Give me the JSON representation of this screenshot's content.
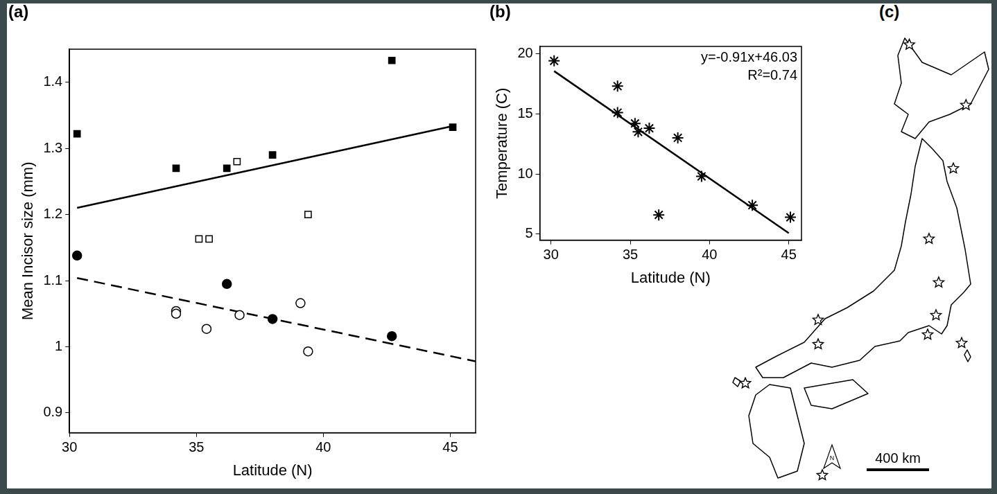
{
  "chart_data": [
    {
      "type": "scatter",
      "title": "(a)",
      "x_label": "Latitude (N)",
      "y_label": "Mean Incisor size (mm)",
      "xlim": [
        30,
        46
      ],
      "xticks": [
        30,
        35,
        40,
        45
      ],
      "ylim": [
        0.87,
        1.45
      ],
      "yticks": [
        0.9,
        1,
        1.1,
        1.2,
        1.3,
        1.4
      ],
      "grid": false,
      "series": [
        {
          "type": "line",
          "line_style": "solid",
          "color": "#000000",
          "x": [
            30.3,
            45
          ],
          "values": [
            1.21,
            1.333
          ]
        },
        {
          "type": "line",
          "line_style": "dashed",
          "color": "#000000",
          "x": [
            30.3,
            46
          ],
          "values": [
            1.104,
            0.978
          ]
        },
        {
          "type": "scatter",
          "marker": "square",
          "color": "#000000",
          "x": [
            30.3,
            34.2,
            36.2,
            38,
            42.7,
            45.1
          ],
          "values": [
            1.322,
            1.27,
            1.27,
            1.29,
            1.433,
            1.332
          ]
        },
        {
          "type": "scatter",
          "marker": "open_square",
          "color": "#000000",
          "x": [
            36.6,
            35.1,
            35.5,
            39.4
          ],
          "values": [
            1.28,
            1.163,
            1.163,
            1.2
          ]
        },
        {
          "type": "scatter",
          "marker": "circle",
          "color": "#000000",
          "x": [
            30.3,
            36.2,
            38,
            42.7
          ],
          "values": [
            1.138,
            1.095,
            1.042,
            1.016
          ]
        },
        {
          "type": "scatter",
          "marker": "open_circle",
          "color": "#000000",
          "x": [
            34.2,
            34.2,
            35.4,
            36.7,
            39.1,
            39.4
          ],
          "values": [
            1.054,
            1.05,
            1.027,
            1.048,
            1.066,
            0.993
          ]
        }
      ]
    },
    {
      "type": "scatter",
      "title": "(b)",
      "x_label": "Latitude (N)",
      "y_label": "Temperature (C)",
      "xlim": [
        29.3,
        45.8
      ],
      "xticks": [
        30,
        35,
        40,
        45
      ],
      "ylim": [
        4.5,
        20.6
      ],
      "yticks": [
        5,
        10,
        15,
        20
      ],
      "grid": false,
      "annotations": [
        "y=-0.91x+46.03",
        "R²=0.74"
      ],
      "series": [
        {
          "type": "line",
          "line_style": "solid",
          "color": "#000000",
          "x": [
            30.2,
            45
          ],
          "values": [
            18.55,
            5.08
          ]
        },
        {
          "type": "scatter",
          "marker": "asterisk",
          "color": "#000000",
          "x": [
            30.2,
            34.2,
            34.2,
            35.3,
            35.5,
            36.2,
            36.8,
            38,
            39.5,
            42.7,
            45.1
          ],
          "values": [
            19.4,
            17.3,
            15.1,
            14.2,
            13.5,
            13.8,
            6.6,
            13,
            9.8,
            7.4,
            6.4
          ]
        }
      ]
    }
  ],
  "map": {
    "title": "(c)",
    "scale_label": "400 km",
    "north": "N",
    "marker": "star",
    "sites": [
      {
        "lon": 140.7,
        "lat": 44.9
      },
      {
        "lon": 144.5,
        "lat": 42.96
      },
      {
        "lon": 143.65,
        "lat": 40.93
      },
      {
        "lon": 142.02,
        "lat": 38.67
      },
      {
        "lon": 142.67,
        "lat": 37.27
      },
      {
        "lon": 142.49,
        "lat": 36.22
      },
      {
        "lon": 141.93,
        "lat": 35.6
      },
      {
        "lon": 144.21,
        "lat": 35.33
      },
      {
        "lon": 134.58,
        "lat": 36.07
      },
      {
        "lon": 134.58,
        "lat": 35.29
      },
      {
        "lon": 129.7,
        "lat": 34.04
      },
      {
        "lon": 134.86,
        "lat": 31.09
      }
    ]
  }
}
